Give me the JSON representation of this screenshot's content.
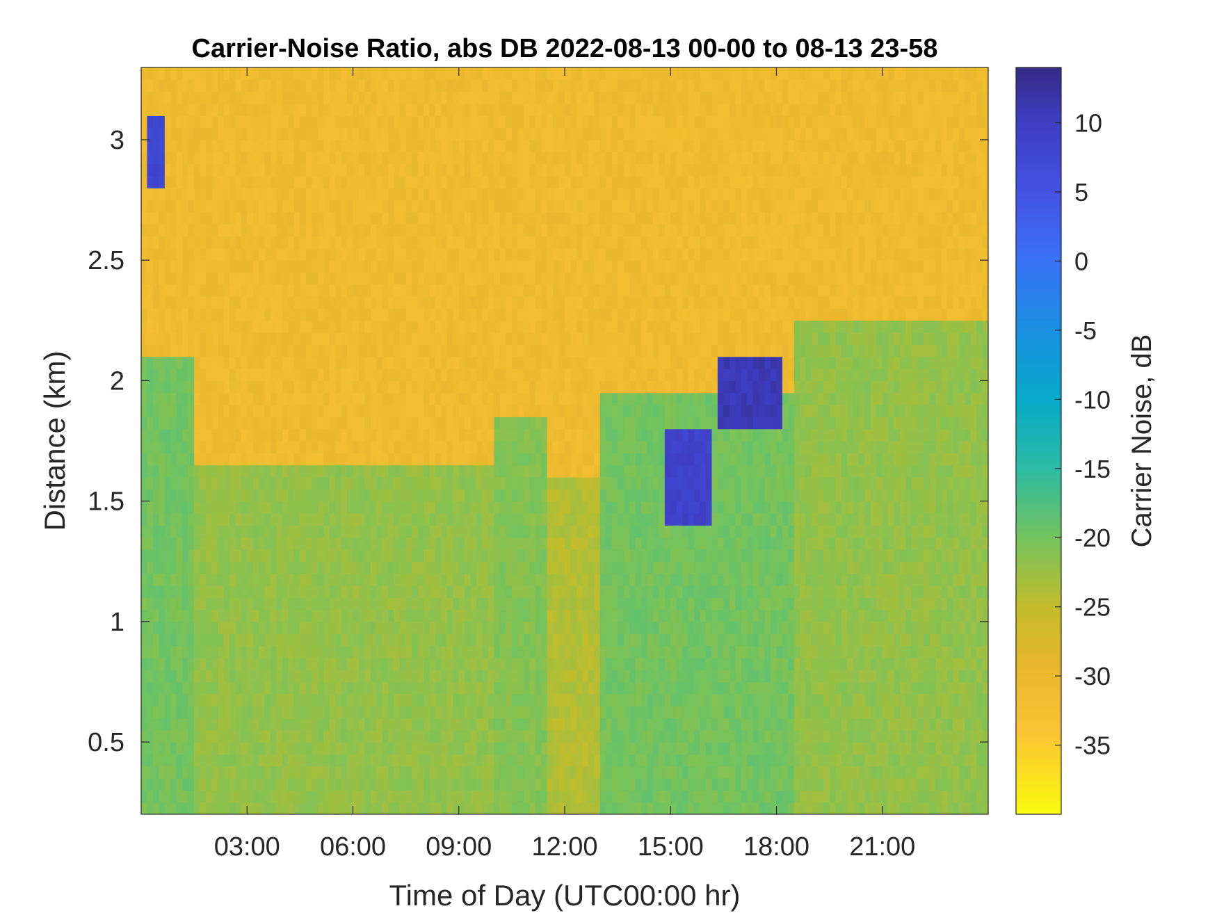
{
  "chart_data": {
    "type": "heatmap",
    "title": "Carrier-Noise Ratio, abs DB 2022-08-13 00-00 to 08-13 23-58",
    "xlabel": "Time of Day (UTC00:00 hr)",
    "ylabel": "Distance (km)",
    "colorbar_label": "Carrier Noise, dB",
    "x_range_hours": [
      0,
      24
    ],
    "y_range_km": [
      0.2,
      3.3
    ],
    "color_range_db": [
      -40,
      14
    ],
    "x_ticks": [
      {
        "hours": 3,
        "label": "03:00"
      },
      {
        "hours": 6,
        "label": "06:00"
      },
      {
        "hours": 9,
        "label": "09:00"
      },
      {
        "hours": 12,
        "label": "12:00"
      },
      {
        "hours": 15,
        "label": "15:00"
      },
      {
        "hours": 18,
        "label": "18:00"
      },
      {
        "hours": 21,
        "label": "21:00"
      }
    ],
    "y_ticks": [
      {
        "km": 0.5,
        "label": "0.5"
      },
      {
        "km": 1,
        "label": "1"
      },
      {
        "km": 1.5,
        "label": "1.5"
      },
      {
        "km": 2,
        "label": "2"
      },
      {
        "km": 2.5,
        "label": "2.5"
      },
      {
        "km": 3,
        "label": "3"
      }
    ],
    "colorbar_ticks": [
      {
        "db": 10,
        "label": "10"
      },
      {
        "db": 5,
        "label": "5"
      },
      {
        "db": 0,
        "label": "0"
      },
      {
        "db": -5,
        "label": "-5"
      },
      {
        "db": -10,
        "label": "-10"
      },
      {
        "db": -15,
        "label": "-15"
      },
      {
        "db": -20,
        "label": "-20"
      },
      {
        "db": -25,
        "label": "-25"
      },
      {
        "db": -30,
        "label": "-30"
      },
      {
        "db": -35,
        "label": "-35"
      }
    ],
    "colormap": "parula (reversed: yellow at minimum, dark blue at maximum)",
    "colormap_stops": [
      {
        "db": -40,
        "color": "#f9fb0e"
      },
      {
        "db": -34,
        "color": "#fbc335"
      },
      {
        "db": -29,
        "color": "#e6b62c"
      },
      {
        "db": -25,
        "color": "#c2bc2b"
      },
      {
        "db": -20,
        "color": "#73c35e"
      },
      {
        "db": -15,
        "color": "#2cbba4"
      },
      {
        "db": -10,
        "color": "#07a9c8"
      },
      {
        "db": -5,
        "color": "#1a8fe0"
      },
      {
        "db": 0,
        "color": "#3a72f6"
      },
      {
        "db": 5,
        "color": "#4452e2"
      },
      {
        "db": 10,
        "color": "#3e3ec2"
      },
      {
        "db": 14,
        "color": "#352a87"
      }
    ],
    "background_level_db": -31,
    "features": [
      {
        "desc": "low-level near-surface band",
        "t_start": 0,
        "t_end": 24,
        "d_top": 1.6,
        "db": -24
      },
      {
        "desc": "early boundary layer",
        "t_start": 0,
        "t_end": 1.5,
        "d_top": 2.1,
        "db": -20
      },
      {
        "desc": "night-time layer",
        "t_start": 1.5,
        "t_end": 10,
        "d_top": 1.65,
        "db": -22
      },
      {
        "desc": "morning rise",
        "t_start": 10,
        "t_end": 11.5,
        "d_top": 1.85,
        "db": -21
      },
      {
        "desc": "afternoon convective layer",
        "t_start": 13,
        "t_end": 18.5,
        "d_top": 1.95,
        "db": -20
      },
      {
        "desc": "evening layer",
        "t_start": 18.5,
        "t_end": 24,
        "d_top": 2.25,
        "db": -22
      },
      {
        "desc": "cloud return",
        "t_start": 0.1,
        "t_end": 0.6,
        "d_bottom": 2.8,
        "d_top": 3.1,
        "db": 8
      },
      {
        "desc": "cloud return",
        "t_start": 14.8,
        "t_end": 16.1,
        "d_bottom": 1.4,
        "d_top": 1.8,
        "db": 9
      },
      {
        "desc": "cloud return",
        "t_start": 16.4,
        "t_end": 18.1,
        "d_bottom": 1.8,
        "d_top": 2.1,
        "db": 11
      }
    ]
  }
}
